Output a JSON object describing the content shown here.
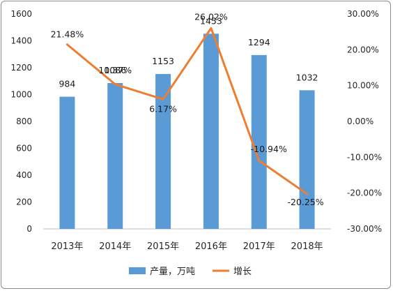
{
  "chart_data": {
    "type": "bar+line",
    "categories": [
      "2013年",
      "2014年",
      "2015年",
      "2016年",
      "2017年",
      "2018年"
    ],
    "series": [
      {
        "name": "产量，万吨",
        "type": "bar",
        "axis": "left",
        "values": [
          984,
          1086,
          1153,
          1453,
          1294,
          1032
        ],
        "labels": [
          "984",
          "1086",
          "1153",
          "1453",
          "1294",
          "1032"
        ],
        "color": "#5b9bd5"
      },
      {
        "name": "增长",
        "type": "line",
        "axis": "right",
        "values": [
          21.48,
          10.37,
          6.17,
          26.02,
          -10.94,
          -20.25
        ],
        "labels": [
          "21.48%",
          "10.37%",
          "6.17%",
          "26.02%",
          "-10.94%",
          "-20.25%"
        ],
        "color": "#ed7d31"
      }
    ],
    "left_axis": {
      "ylim": [
        0,
        1600
      ],
      "ticks": [
        "0",
        "200",
        "400",
        "600",
        "800",
        "1000",
        "1200",
        "1400",
        "1600"
      ]
    },
    "right_axis": {
      "ylim": [
        -30,
        30
      ],
      "ticks": [
        "-30.00%",
        "-20.00%",
        "-10.00%",
        "0.00%",
        "10.00%",
        "20.00%",
        "30.00%"
      ]
    },
    "grid": false,
    "legend": "bottom"
  }
}
